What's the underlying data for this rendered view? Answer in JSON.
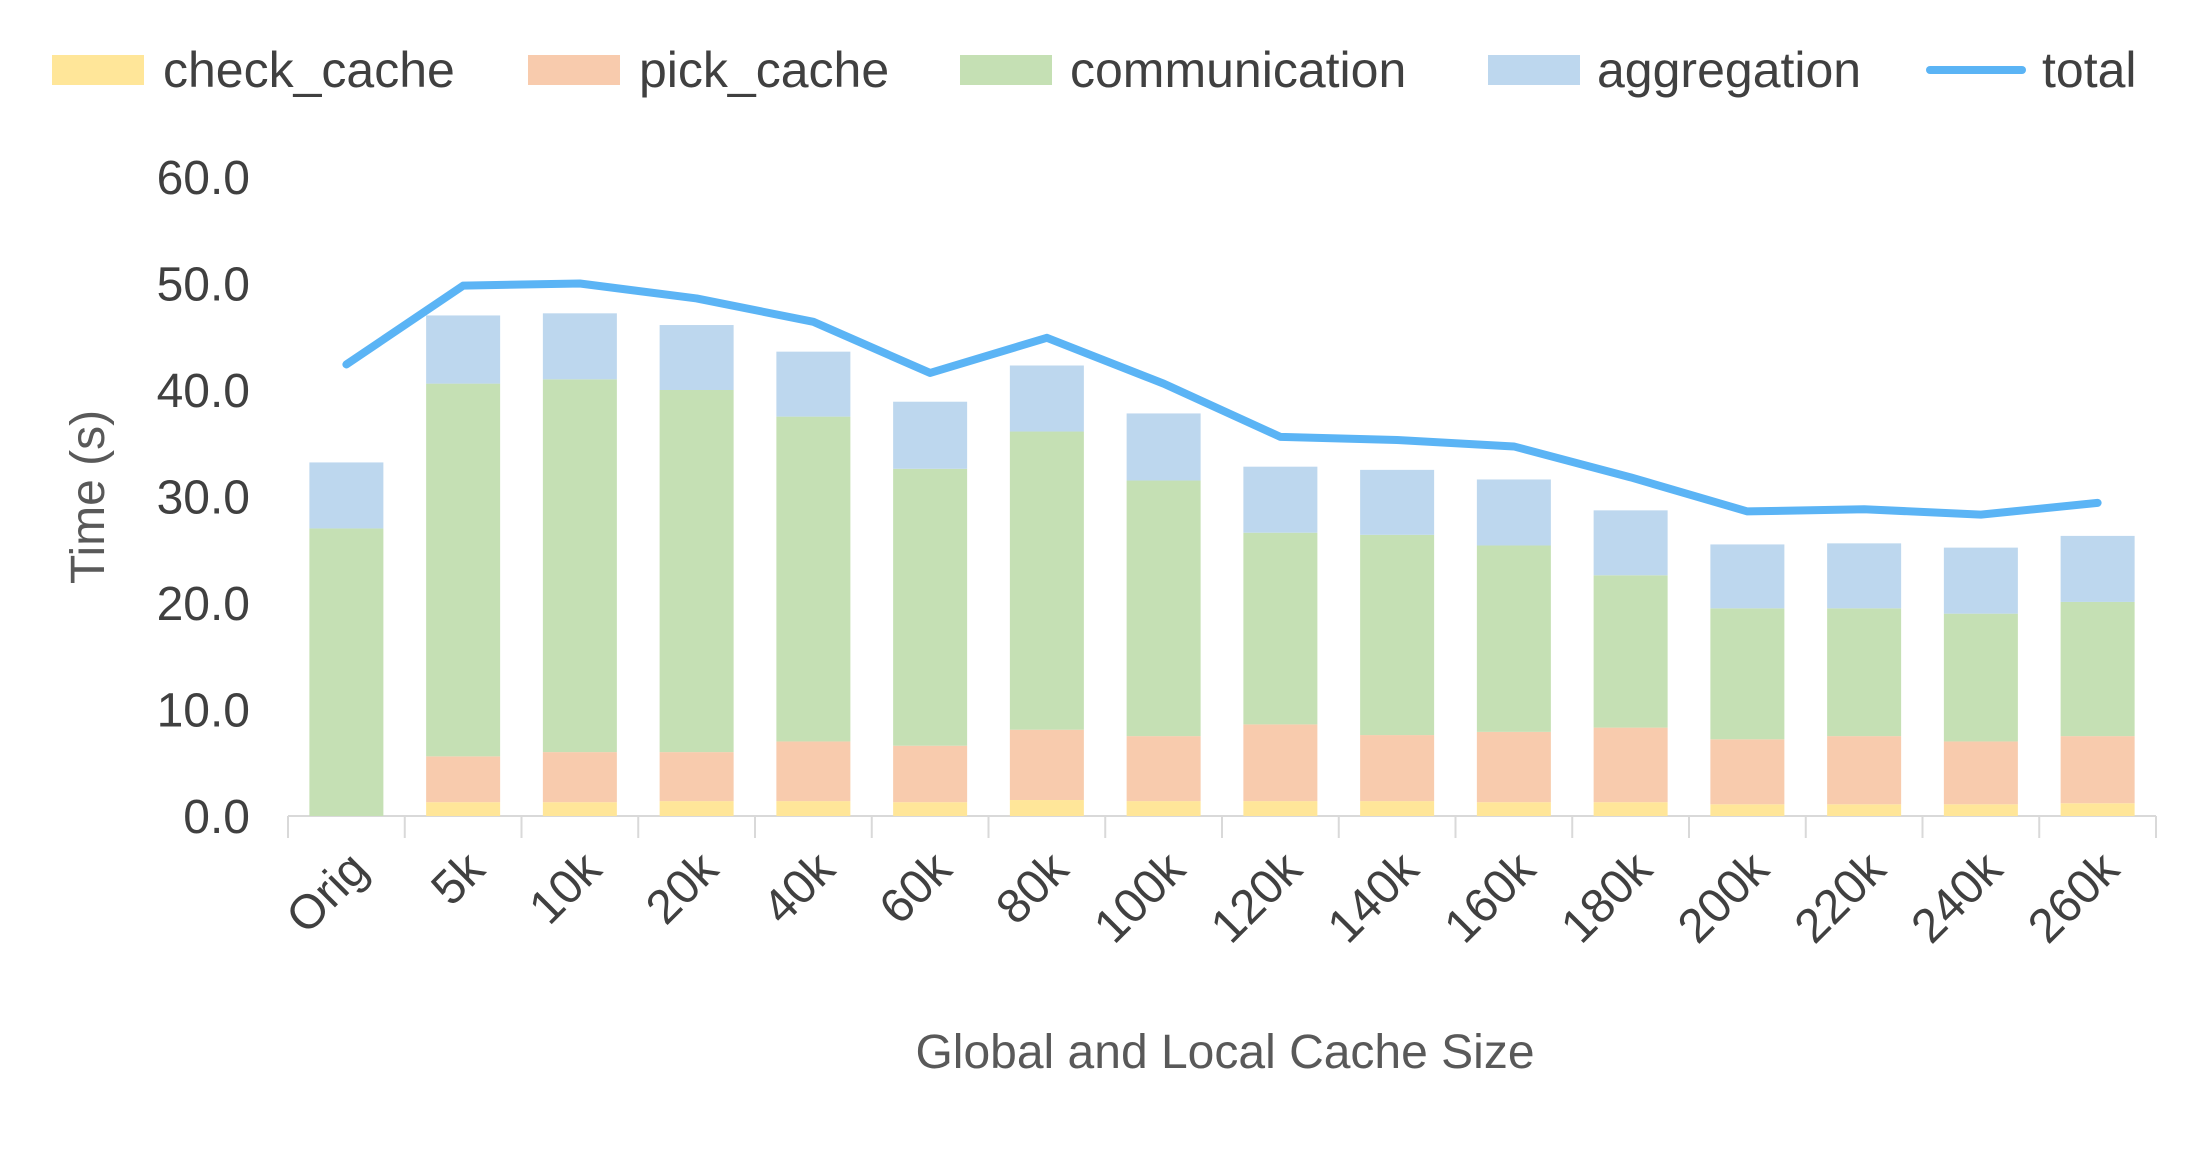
{
  "chart_data": {
    "type": "bar",
    "stacked": true,
    "categories": [
      "Orig",
      "5k",
      "10k",
      "20k",
      "40k",
      "60k",
      "80k",
      "100k",
      "120k",
      "140k",
      "160k",
      "180k",
      "200k",
      "220k",
      "240k",
      "260k"
    ],
    "series": [
      {
        "name": "check_cache",
        "kind": "bar",
        "color": "#ffe699",
        "values": [
          0.0,
          1.3,
          1.3,
          1.4,
          1.4,
          1.3,
          1.5,
          1.4,
          1.4,
          1.4,
          1.3,
          1.3,
          1.1,
          1.1,
          1.1,
          1.2
        ]
      },
      {
        "name": "pick_cache",
        "kind": "bar",
        "color": "#f8cbad",
        "values": [
          0.0,
          4.3,
          4.7,
          4.6,
          5.6,
          5.3,
          6.6,
          6.1,
          7.2,
          6.2,
          6.6,
          7.0,
          6.1,
          6.4,
          5.9,
          6.3
        ]
      },
      {
        "name": "communication",
        "kind": "bar",
        "color": "#c5e0b4",
        "values": [
          27.0,
          35.0,
          35.0,
          34.0,
          30.5,
          26.0,
          28.0,
          24.0,
          18.0,
          18.8,
          17.5,
          14.3,
          12.3,
          12.0,
          12.0,
          12.6
        ]
      },
      {
        "name": "aggregation",
        "kind": "bar",
        "color": "#bdd7ee",
        "values": [
          6.2,
          6.4,
          6.2,
          6.1,
          6.1,
          6.3,
          6.2,
          6.3,
          6.2,
          6.1,
          6.2,
          6.1,
          6.0,
          6.1,
          6.2,
          6.2
        ]
      },
      {
        "name": "total",
        "kind": "line",
        "color": "#5bb4f5",
        "values": [
          42.4,
          49.8,
          50.0,
          48.6,
          46.4,
          41.6,
          44.9,
          40.6,
          35.6,
          35.3,
          34.7,
          31.8,
          28.6,
          28.8,
          28.3,
          29.4
        ]
      }
    ],
    "title": "",
    "xlabel": "Global and Local Cache Size",
    "ylabel": "Time (s)",
    "ylim": [
      0,
      60
    ],
    "yticks": [
      "0.0",
      "10.0",
      "20.0",
      "30.0",
      "40.0",
      "50.0",
      "60.0"
    ],
    "grid": false,
    "legend": "top"
  }
}
